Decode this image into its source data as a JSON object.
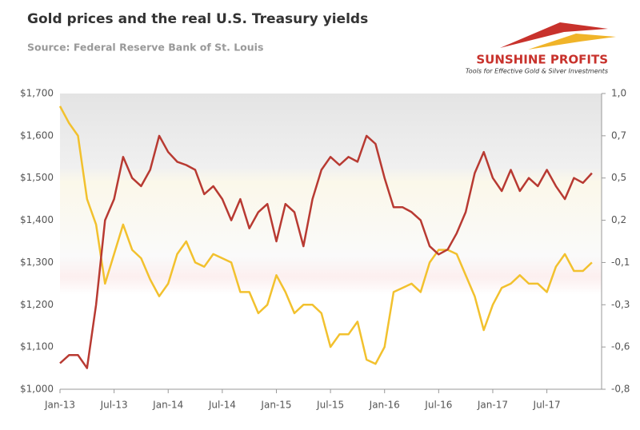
{
  "chart_data": {
    "type": "line",
    "title": "Gold prices and the real U.S. Treasury yields",
    "subtitle": "Source: Federal Reserve Bank of St. Louis",
    "logo": {
      "name": "SUNSHINE PROFITS",
      "tagline": "Tools for Effective Gold & Silver Investments"
    },
    "x": [
      "2013-01",
      "2013-02",
      "2013-03",
      "2013-04",
      "2013-05",
      "2013-06",
      "2013-07",
      "2013-08",
      "2013-09",
      "2013-10",
      "2013-11",
      "2013-12",
      "2014-01",
      "2014-02",
      "2014-03",
      "2014-04",
      "2014-05",
      "2014-06",
      "2014-07",
      "2014-08",
      "2014-09",
      "2014-10",
      "2014-11",
      "2014-12",
      "2015-01",
      "2015-02",
      "2015-03",
      "2015-04",
      "2015-05",
      "2015-06",
      "2015-07",
      "2015-08",
      "2015-09",
      "2015-10",
      "2015-11",
      "2015-12",
      "2016-01",
      "2016-02",
      "2016-03",
      "2016-04",
      "2016-05",
      "2016-06",
      "2016-07",
      "2016-08",
      "2016-09",
      "2016-10",
      "2016-11",
      "2016-12",
      "2017-01",
      "2017-02",
      "2017-03",
      "2017-04",
      "2017-05",
      "2017-06",
      "2017-07",
      "2017-08",
      "2017-09",
      "2017-10",
      "2017-11",
      "2017-12"
    ],
    "xticks": [
      {
        "value": "2013-01",
        "label": "Jan-13"
      },
      {
        "value": "2013-07",
        "label": "Jul-13"
      },
      {
        "value": "2014-01",
        "label": "Jan-14"
      },
      {
        "value": "2014-07",
        "label": "Jul-14"
      },
      {
        "value": "2015-01",
        "label": "Jan-15"
      },
      {
        "value": "2015-07",
        "label": "Jul-15"
      },
      {
        "value": "2016-01",
        "label": "Jan-16"
      },
      {
        "value": "2016-07",
        "label": "Jul-16"
      },
      {
        "value": "2017-01",
        "label": "Jan-17"
      },
      {
        "value": "2017-07",
        "label": "Jul-17"
      }
    ],
    "ylim": [
      1000,
      1700
    ],
    "yticks": [
      {
        "value": 1000,
        "label": "$1,000"
      },
      {
        "value": 1100,
        "label": "$1,100"
      },
      {
        "value": 1200,
        "label": "$1,200"
      },
      {
        "value": 1300,
        "label": "$1,300"
      },
      {
        "value": 1400,
        "label": "$1,400"
      },
      {
        "value": 1500,
        "label": "$1,500"
      },
      {
        "value": 1600,
        "label": "$1,600"
      },
      {
        "value": 1700,
        "label": "$1,700"
      }
    ],
    "y2lim": [
      -0.84,
      0.98
    ],
    "y2ticks": [
      {
        "value": -0.84,
        "label": "-0,8"
      },
      {
        "value": -0.58,
        "label": "-0,6"
      },
      {
        "value": -0.32,
        "label": "-0,3"
      },
      {
        "value": -0.06,
        "label": "-0,1"
      },
      {
        "value": 0.2,
        "label": "0,2"
      },
      {
        "value": 0.46,
        "label": "0,5"
      },
      {
        "value": 0.72,
        "label": "0,7"
      },
      {
        "value": 0.98,
        "label": "1,0"
      }
    ],
    "series": [
      {
        "color": "#f2c12e",
        "values": [
          1670,
          1630,
          1600,
          1450,
          1390,
          1250,
          1320,
          1390,
          1330,
          1310,
          1260,
          1220,
          1250,
          1320,
          1350,
          1300,
          1290,
          1320,
          1310,
          1300,
          1230,
          1230,
          1180,
          1200,
          1270,
          1230,
          1180,
          1200,
          1200,
          1180,
          1100,
          1130,
          1130,
          1160,
          1070,
          1060,
          1100,
          1230,
          1240,
          1250,
          1230,
          1300,
          1330,
          1330,
          1320,
          1270,
          1220,
          1140,
          1200,
          1240,
          1250,
          1270,
          1250,
          1250,
          1230,
          1290,
          1320,
          1280,
          1280,
          1300
        ]
      },
      {
        "color": "#b83a32",
        "axis": "y2",
        "values": [
          -0.68,
          -0.63,
          -0.63,
          -0.71,
          -0.32,
          0.2,
          0.33,
          0.59,
          0.46,
          0.41,
          0.51,
          0.72,
          0.62,
          0.56,
          0.54,
          0.51,
          0.36,
          0.41,
          0.33,
          0.2,
          0.33,
          0.15,
          0.25,
          0.3,
          0.07,
          0.3,
          0.25,
          0.04,
          0.33,
          0.51,
          0.59,
          0.54,
          0.59,
          0.56,
          0.72,
          0.67,
          0.46,
          0.28,
          0.28,
          0.25,
          0.2,
          0.04,
          -0.01,
          0.02,
          0.12,
          0.25,
          0.49,
          0.62,
          0.46,
          0.38,
          0.51,
          0.38,
          0.46,
          0.41,
          0.51,
          0.41,
          0.33,
          0.46,
          0.43,
          0.49
        ]
      }
    ]
  }
}
